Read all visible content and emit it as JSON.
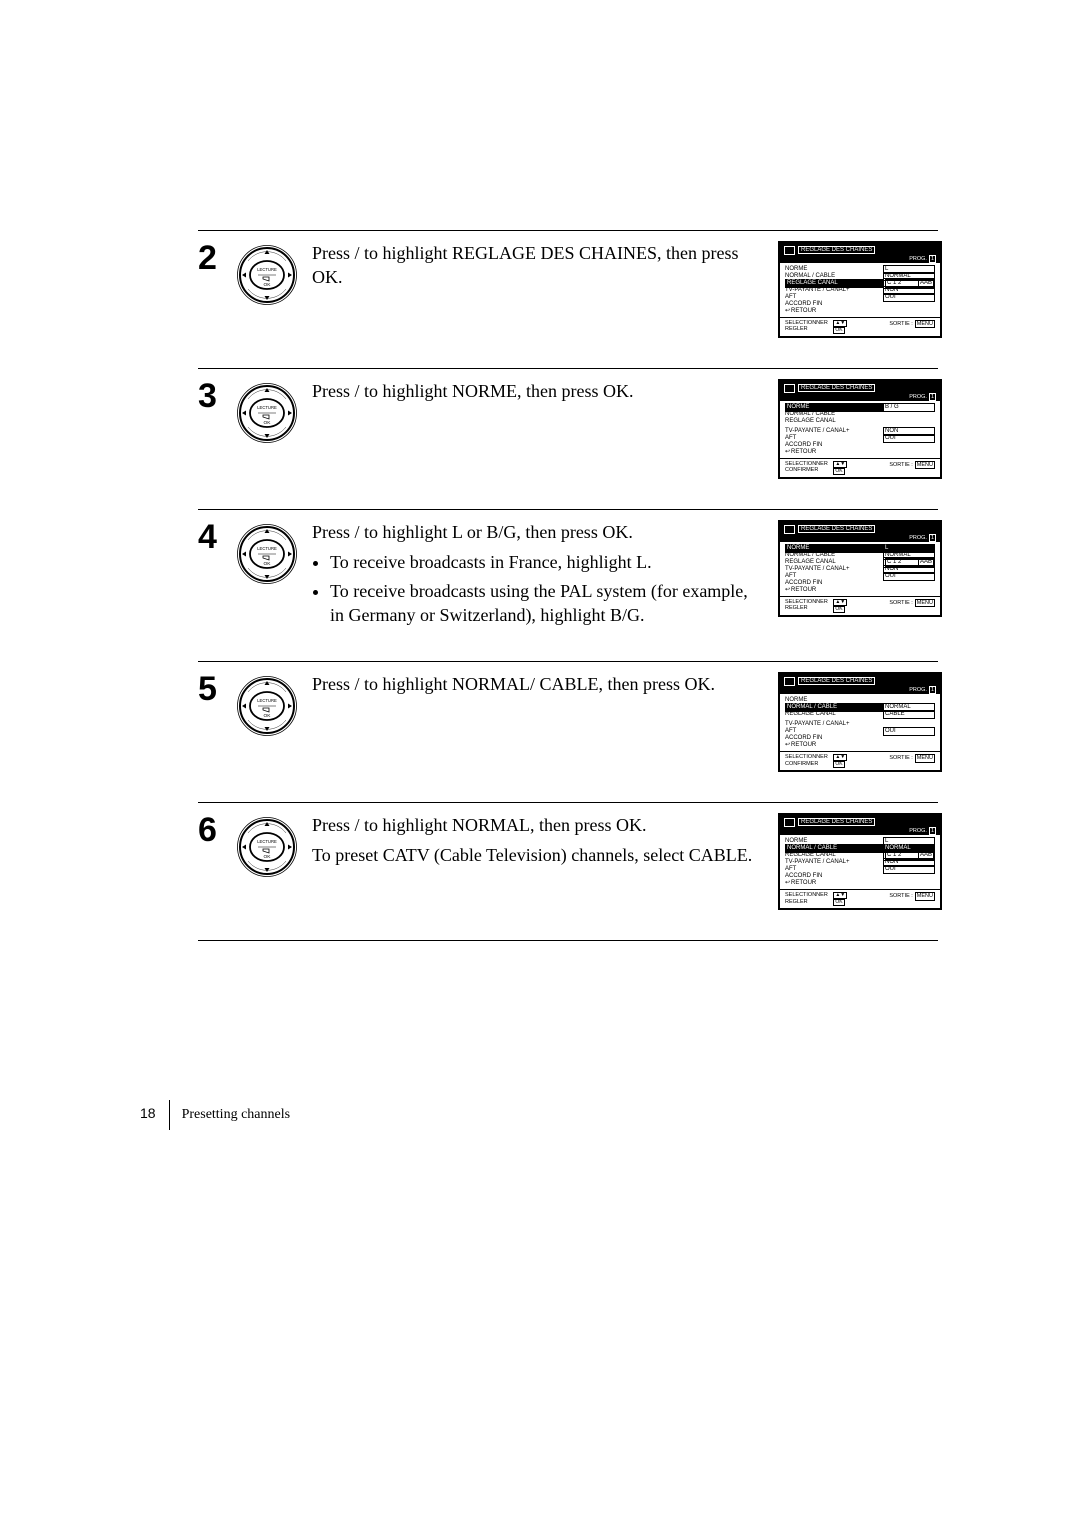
{
  "steps": [
    {
      "number": "2",
      "instruction_html": [
        "Press    /    to highlight REGLAGE DES CHAINES, then press OK."
      ],
      "osd": {
        "title": "REGLAGE DES CHAINES",
        "prog_label": "PROG.",
        "prog_value": "1",
        "rows": [
          {
            "label": "NORME",
            "value": "L",
            "hl_label": false,
            "hl_val": false
          },
          {
            "label": "NORMAL / CABLE",
            "value": "NORMAL",
            "hl_label": false,
            "hl_val": false
          },
          {
            "label": "REGLAGE CANAL",
            "value_pair": [
              "C 1 2",
              "AAB"
            ],
            "hl_label": true,
            "hl_val": false
          },
          {
            "label": "TV-PAYANTE / CANAL+",
            "value": "NON",
            "hl_label": false,
            "hl_val": false
          },
          {
            "label": "AFT",
            "value": "OUI",
            "hl_label": false,
            "hl_val": false
          },
          {
            "label": "ACCORD FIN",
            "value": null
          },
          {
            "label": "RETOUR",
            "value": null,
            "ret": true
          }
        ],
        "footer_left": [
          "SELECTIONNER",
          "REGLER"
        ],
        "footer_right_label": "SORTIE",
        "footer_right_box": "MENU"
      }
    },
    {
      "number": "3",
      "instruction_html": [
        "Press    /    to highlight NORME, then press OK."
      ],
      "osd": {
        "title": "REGLAGE DES CHAINES",
        "prog_label": "PROG.",
        "prog_value": "1",
        "rows": [
          {
            "label": "NORME",
            "value": "B / G",
            "hl_label": true,
            "hl_val": false
          },
          {
            "label": "NORMAL / CABLE",
            "value": null
          },
          {
            "label": "REGLAGE CANAL",
            "value": null
          },
          {
            "gap": true
          },
          {
            "label": "TV-PAYANTE / CANAL+",
            "value": "NON",
            "hl_label": false,
            "hl_val": false
          },
          {
            "label": "AFT",
            "value": "OUI",
            "hl_label": false,
            "hl_val": false
          },
          {
            "label": "ACCORD FIN",
            "value": null
          },
          {
            "label": "RETOUR",
            "value": null,
            "ret": true
          }
        ],
        "footer_left": [
          "SELECTIONNER",
          "CONFIRMER"
        ],
        "footer_right_label": "SORTIE",
        "footer_right_box": "MENU"
      }
    },
    {
      "number": "4",
      "instruction_html": [
        "Press    /    to highlight L or B/G, then press OK.",
        [
          "To receive broadcasts in France, highlight L.",
          "To receive broadcasts using the PAL system (for example, in Germany or Switzerland), highlight B/G."
        ]
      ],
      "osd": {
        "title": "REGLAGE DES CHAINES",
        "prog_label": "PROG.",
        "prog_value": "1",
        "rows": [
          {
            "label": "NORME",
            "value": "L",
            "hl_label": true,
            "hl_val": true
          },
          {
            "label": "NORMAL / CABLE",
            "value": "NORMAL",
            "hl_label": false,
            "hl_val": false
          },
          {
            "label": "REGLAGE CANAL",
            "value_pair": [
              "C 1 2",
              "AAB"
            ],
            "hl_label": false,
            "hl_val": false
          },
          {
            "label": "TV-PAYANTE / CANAL+",
            "value": "NON",
            "hl_label": false,
            "hl_val": false
          },
          {
            "label": "AFT",
            "value": "OUI",
            "hl_label": false,
            "hl_val": false
          },
          {
            "label": "ACCORD FIN",
            "value": null
          },
          {
            "label": "RETOUR",
            "value": null,
            "ret": true
          }
        ],
        "footer_left": [
          "SELECTIONNER",
          "REGLER"
        ],
        "footer_right_label": "SORTIE",
        "footer_right_box": "MENU"
      }
    },
    {
      "number": "5",
      "instruction_html": [
        "Press    /    to highlight NORMAL/ CABLE, then press OK."
      ],
      "osd": {
        "title": "REGLAGE DES CHAINES",
        "prog_label": "PROG.",
        "prog_value": "1",
        "rows": [
          {
            "label": "NORME",
            "value": null
          },
          {
            "label": "NORMAL / CABLE",
            "value": "NORMAL",
            "hl_label": true,
            "hl_val": false
          },
          {
            "label": "REGLAGE CANAL",
            "value": "CABLE",
            "hl_label": false,
            "hl_val": false
          },
          {
            "gap": true
          },
          {
            "label": "TV-PAYANTE / CANAL+",
            "value": null
          },
          {
            "label": "AFT",
            "value": "OUI",
            "hl_label": false,
            "hl_val": false
          },
          {
            "label": "ACCORD FIN",
            "value": null
          },
          {
            "label": "RETOUR",
            "value": null,
            "ret": true
          }
        ],
        "footer_left": [
          "SELECTIONNER",
          "CONFIRMER"
        ],
        "footer_right_label": "SORTIE",
        "footer_right_box": "MENU"
      }
    },
    {
      "number": "6",
      "instruction_html": [
        "Press    /    to highlight NORMAL, then press OK.",
        "To preset CATV (Cable Television) channels, select CABLE."
      ],
      "osd": {
        "title": "REGLAGE DES CHAINES",
        "prog_label": "PROG.",
        "prog_value": "1",
        "rows": [
          {
            "label": "NORME",
            "value": "L",
            "hl_label": false,
            "hl_val": false
          },
          {
            "label": "NORMAL / CABLE",
            "value": "NORMAL",
            "hl_label": true,
            "hl_val": true
          },
          {
            "label": "REGLAGE CANAL",
            "value_pair": [
              "C 1 2",
              "AAB"
            ],
            "hl_label": false,
            "hl_val": false
          },
          {
            "label": "TV-PAYANTE / CANAL+",
            "value": "NON",
            "hl_label": false,
            "hl_val": false
          },
          {
            "label": "AFT",
            "value": "OUI",
            "hl_label": false,
            "hl_val": false
          },
          {
            "label": "ACCORD FIN",
            "value": null
          },
          {
            "label": "RETOUR",
            "value": null,
            "ret": true
          }
        ],
        "footer_left": [
          "SELECTIONNER",
          "REGLER"
        ],
        "footer_right_label": "SORTIE",
        "footer_right_box": "MENU"
      }
    }
  ],
  "wheel": {
    "top_label": "LECTURE",
    "bottom_label": "OK"
  },
  "footer": {
    "page_number": "18",
    "section": "Presetting channels"
  }
}
